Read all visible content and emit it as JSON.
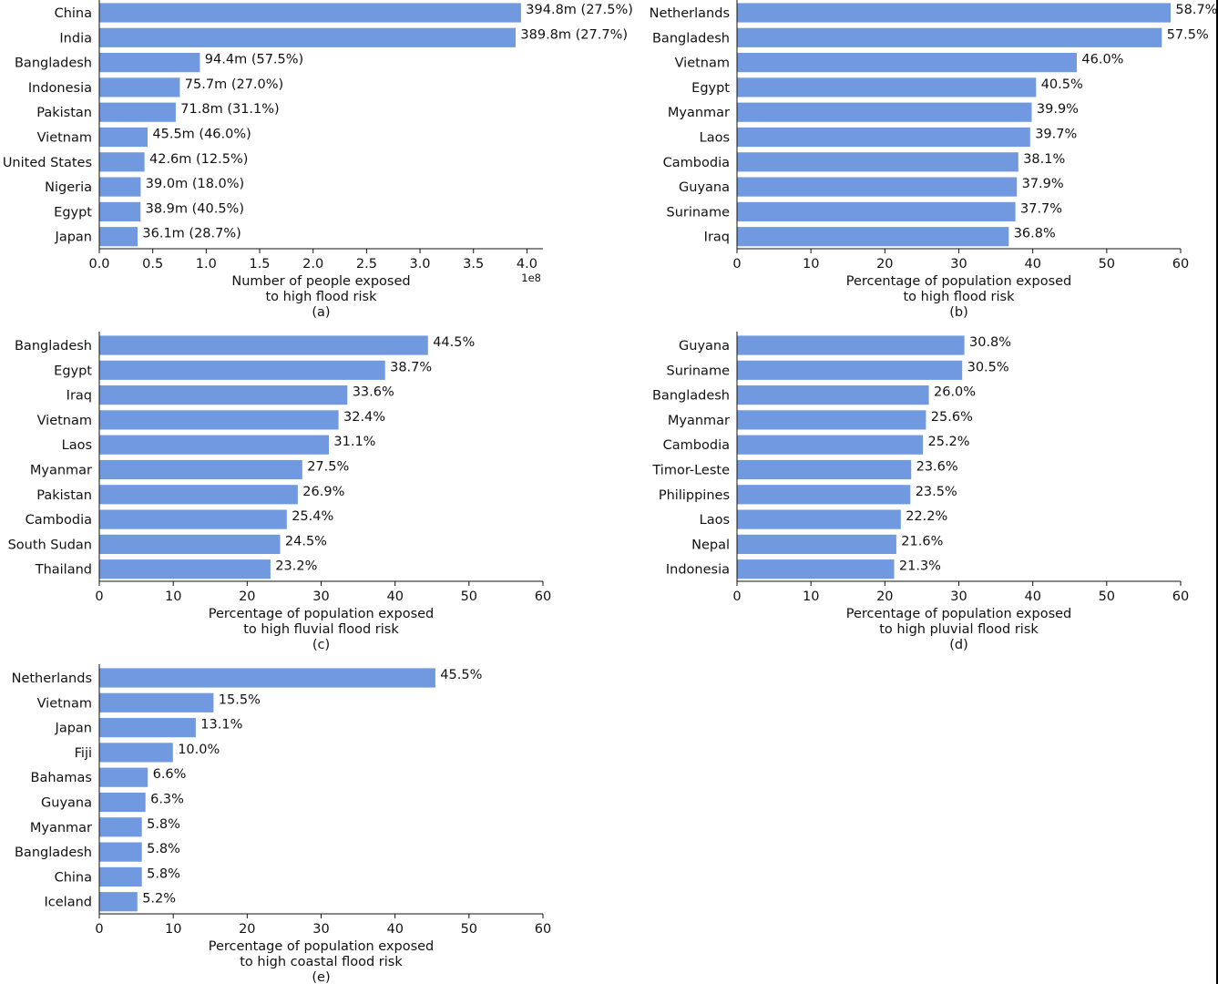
{
  "figure": {
    "bar_color": "#7099e0",
    "text_color": "#111111"
  },
  "chart_data": [
    {
      "type": "bar",
      "orientation": "horizontal",
      "panel": "(a)",
      "categories": [
        "China",
        "India",
        "Bangladesh",
        "Indonesia",
        "Pakistan",
        "Vietnam",
        "United States",
        "Nigeria",
        "Egypt",
        "Japan"
      ],
      "values": [
        394800000,
        389800000,
        94400000,
        75700000,
        71800000,
        45500000,
        42600000,
        39000000,
        38900000,
        36100000
      ],
      "data_labels": [
        "394.8m (27.5%)",
        "389.8m (27.7%)",
        "94.4m (57.5%)",
        "75.7m (27.0%)",
        "71.8m (31.1%)",
        "45.5m (46.0%)",
        "42.6m (12.5%)",
        "39.0m (18.0%)",
        "38.9m (40.5%)",
        "36.1m (28.7%)"
      ],
      "xlabel": [
        "Number of people exposed",
        "to high flood risk"
      ],
      "xlim": [
        0,
        415000000
      ],
      "xticks": [
        0,
        50000000,
        100000000,
        150000000,
        200000000,
        250000000,
        300000000,
        350000000,
        400000000
      ],
      "xtick_labels": [
        "0.0",
        "0.5",
        "1.0",
        "1.5",
        "2.0",
        "2.5",
        "3.0",
        "3.5",
        "4.0"
      ],
      "offset_label": "1e8",
      "grid": false,
      "legend": "none"
    },
    {
      "type": "bar",
      "orientation": "horizontal",
      "panel": "(b)",
      "categories": [
        "Netherlands",
        "Bangladesh",
        "Vietnam",
        "Egypt",
        "Myanmar",
        "Laos",
        "Cambodia",
        "Guyana",
        "Suriname",
        "Iraq"
      ],
      "values": [
        58.7,
        57.5,
        46.0,
        40.5,
        39.9,
        39.7,
        38.1,
        37.9,
        37.7,
        36.8
      ],
      "data_labels": [
        "58.7%",
        "57.5%",
        "46.0%",
        "40.5%",
        "39.9%",
        "39.7%",
        "38.1%",
        "37.9%",
        "37.7%",
        "36.8%"
      ],
      "xlabel": [
        "Percentage of population exposed",
        "to high flood risk"
      ],
      "xlim": [
        0,
        60
      ],
      "xticks": [
        0,
        10,
        20,
        30,
        40,
        50,
        60
      ],
      "xtick_labels": [
        "0",
        "10",
        "20",
        "30",
        "40",
        "50",
        "60"
      ],
      "grid": false,
      "legend": "none"
    },
    {
      "type": "bar",
      "orientation": "horizontal",
      "panel": "(c)",
      "categories": [
        "Bangladesh",
        "Egypt",
        "Iraq",
        "Vietnam",
        "Laos",
        "Myanmar",
        "Pakistan",
        "Cambodia",
        "South Sudan",
        "Thailand"
      ],
      "values": [
        44.5,
        38.7,
        33.6,
        32.4,
        31.1,
        27.5,
        26.9,
        25.4,
        24.5,
        23.2
      ],
      "data_labels": [
        "44.5%",
        "38.7%",
        "33.6%",
        "32.4%",
        "31.1%",
        "27.5%",
        "26.9%",
        "25.4%",
        "24.5%",
        "23.2%"
      ],
      "xlabel": [
        "Percentage of population exposed",
        "to high fluvial flood risk"
      ],
      "xlim": [
        0,
        60
      ],
      "xticks": [
        0,
        10,
        20,
        30,
        40,
        50,
        60
      ],
      "xtick_labels": [
        "0",
        "10",
        "20",
        "30",
        "40",
        "50",
        "60"
      ],
      "grid": false,
      "legend": "none"
    },
    {
      "type": "bar",
      "orientation": "horizontal",
      "panel": "(d)",
      "categories": [
        "Guyana",
        "Suriname",
        "Bangladesh",
        "Myanmar",
        "Cambodia",
        "Timor-Leste",
        "Philippines",
        "Laos",
        "Nepal",
        "Indonesia"
      ],
      "values": [
        30.8,
        30.5,
        26.0,
        25.6,
        25.2,
        23.6,
        23.5,
        22.2,
        21.6,
        21.3
      ],
      "data_labels": [
        "30.8%",
        "30.5%",
        "26.0%",
        "25.6%",
        "25.2%",
        "23.6%",
        "23.5%",
        "22.2%",
        "21.6%",
        "21.3%"
      ],
      "xlabel": [
        "Percentage of population exposed",
        "to high pluvial flood risk"
      ],
      "xlim": [
        0,
        60
      ],
      "xticks": [
        0,
        10,
        20,
        30,
        40,
        50,
        60
      ],
      "xtick_labels": [
        "0",
        "10",
        "20",
        "30",
        "40",
        "50",
        "60"
      ],
      "grid": false,
      "legend": "none"
    },
    {
      "type": "bar",
      "orientation": "horizontal",
      "panel": "(e)",
      "categories": [
        "Netherlands",
        "Vietnam",
        "Japan",
        "Fiji",
        "Bahamas",
        "Guyana",
        "Myanmar",
        "Bangladesh",
        "China",
        "Iceland"
      ],
      "values": [
        45.5,
        15.5,
        13.1,
        10.0,
        6.6,
        6.3,
        5.8,
        5.8,
        5.8,
        5.2
      ],
      "data_labels": [
        "45.5%",
        "15.5%",
        "13.1%",
        "10.0%",
        "6.6%",
        "6.3%",
        "5.8%",
        "5.8%",
        "5.8%",
        "5.2%"
      ],
      "xlabel": [
        "Percentage of population exposed",
        "to high coastal flood risk"
      ],
      "xlim": [
        0,
        60
      ],
      "xticks": [
        0,
        10,
        20,
        30,
        40,
        50,
        60
      ],
      "xtick_labels": [
        "0",
        "10",
        "20",
        "30",
        "40",
        "50",
        "60"
      ],
      "grid": false,
      "legend": "none"
    }
  ]
}
